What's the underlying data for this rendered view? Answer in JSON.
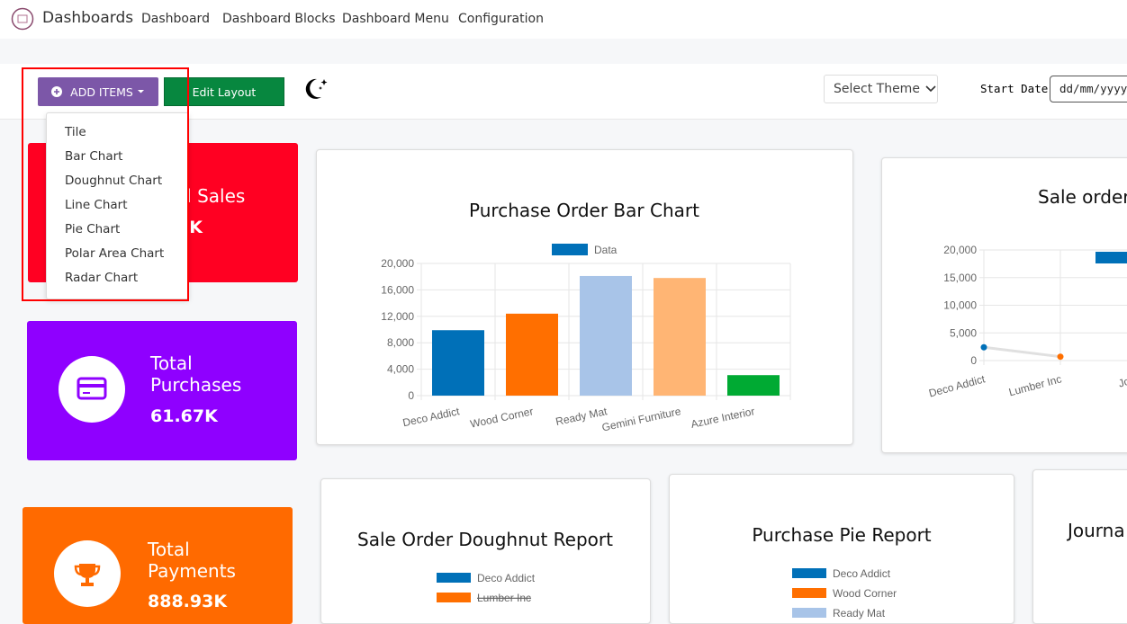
{
  "navbar": {
    "brand": "Dashboards",
    "links": [
      "Dashboard",
      "Dashboard Blocks",
      "Dashboard Menu",
      "Configuration"
    ]
  },
  "toolbar": {
    "add_items": "ADD ITEMS",
    "edit_layout": "Edit Layout",
    "select_theme": "Select Theme",
    "start_date": {
      "label": "Start Date:",
      "placeholder": "dd/mm/yyyy"
    }
  },
  "add_items_menu": [
    "Tile",
    "Bar Chart",
    "Doughnut Chart",
    "Line Chart",
    "Pie Chart",
    "Polar Area Chart",
    "Radar Chart"
  ],
  "tiles": [
    {
      "title": "Total Sales",
      "value": "K"
    },
    {
      "title": "Total Purchases",
      "value": "61.67K"
    },
    {
      "title": "Total Payments",
      "value": "888.93K"
    }
  ],
  "charts": [
    {
      "type": "bar",
      "title": "Purchase Order Bar Chart",
      "series_name": "Data",
      "legend_color": "#0070b8",
      "categories": [
        "Deco Addict",
        "Wood Corner",
        "Ready Mat",
        "Gemini Furniture",
        "Azure Interior"
      ],
      "values": [
        9900,
        12400,
        18100,
        17800,
        3100
      ],
      "colors": [
        "#0070b8",
        "#ff6f00",
        "#a8c4e8",
        "#ffb574",
        "#00aa33"
      ],
      "ylim": [
        0,
        20000
      ],
      "yticks": [
        0,
        {
          "value": 4000,
          "label": "4,000"
        },
        {
          "value": 8000,
          "label": "8,000"
        },
        {
          "value": 12000,
          "label": "12,000"
        },
        {
          "value": 16000,
          "label": "16,000"
        },
        {
          "value": 20000,
          "label": "20,000"
        }
      ],
      "grid": true
    },
    {
      "type": "line",
      "title": "Sale order",
      "legend_color": "#0070b8",
      "categories": [
        "Deco Addict",
        "Lumber Inc",
        "Joel"
      ],
      "values": [
        2400,
        700,
        null
      ],
      "point_colors": [
        "#0070b8",
        "#ff6f00",
        "#a8c4e8"
      ],
      "line_color": "#e0e0e0",
      "ylim": [
        0,
        20000
      ],
      "yticks": [
        0,
        {
          "value": 5000,
          "label": "5,000"
        },
        {
          "value": 10000,
          "label": "10,000"
        },
        {
          "value": 15000,
          "label": "15,000"
        },
        {
          "value": 20000,
          "label": "20,000"
        }
      ],
      "grid": true
    },
    {
      "type": "doughnut",
      "title": "Sale Order Doughnut Report",
      "legend": [
        {
          "name": "Deco Addict",
          "color": "#0070b8"
        },
        {
          "name": "Lumber Inc",
          "color": "#ff6f00",
          "hidden": true
        }
      ]
    },
    {
      "type": "pie",
      "title": "Purchase Pie Report",
      "legend": [
        {
          "name": "Deco Addict",
          "color": "#0070b8"
        },
        {
          "name": "Wood Corner",
          "color": "#ff6f00"
        },
        {
          "name": "Ready Mat",
          "color": "#a8c4e8"
        }
      ]
    },
    {
      "type": "card",
      "title": "Journa"
    }
  ]
}
